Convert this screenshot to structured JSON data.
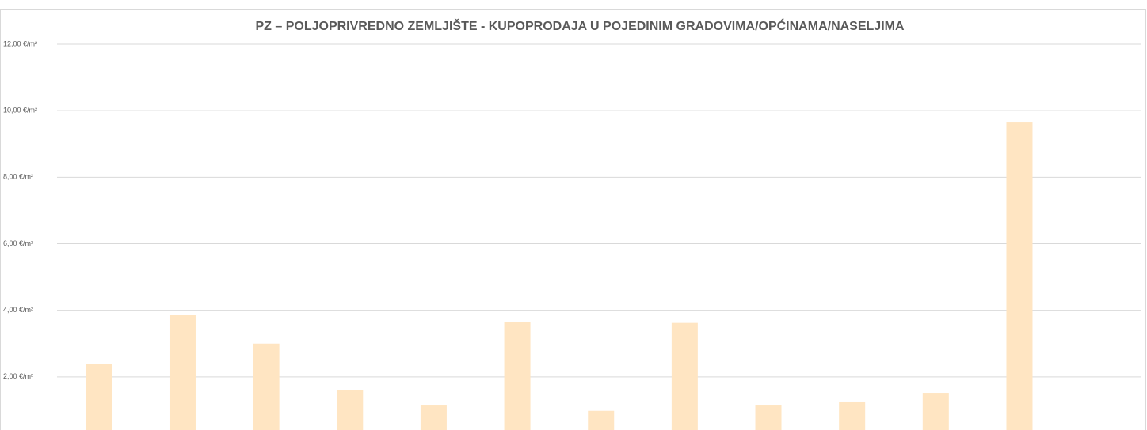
{
  "chart_data": {
    "type": "bar",
    "title": "PZ – POLJOPRIVREDNO ZEMLJIŠTE - KUPOPRODAJA  U POJEDINIM GRADOVIMA/OPĆINAMA/NASELJIMA",
    "categories": [
      null,
      null,
      null,
      null,
      null,
      null,
      null,
      null,
      null,
      null,
      null,
      null
    ],
    "values": [
      2.38,
      3.86,
      3.0,
      1.6,
      1.14,
      3.64,
      0.98,
      3.62,
      1.14,
      1.26,
      1.52,
      9.67
    ],
    "color": "#ffe5c2",
    "ylim": [
      0,
      12
    ],
    "yticks": [
      {
        "value": 2,
        "label": "2,00 €/m²"
      },
      {
        "value": 4,
        "label": "4,00 €/m²"
      },
      {
        "value": 6,
        "label": "6,00 €/m²"
      },
      {
        "value": 8,
        "label": "8,00 €/m²"
      },
      {
        "value": 10,
        "label": "10,00 €/m²"
      },
      {
        "value": 12,
        "label": "12,00 €/m²"
      }
    ],
    "grid": true
  }
}
